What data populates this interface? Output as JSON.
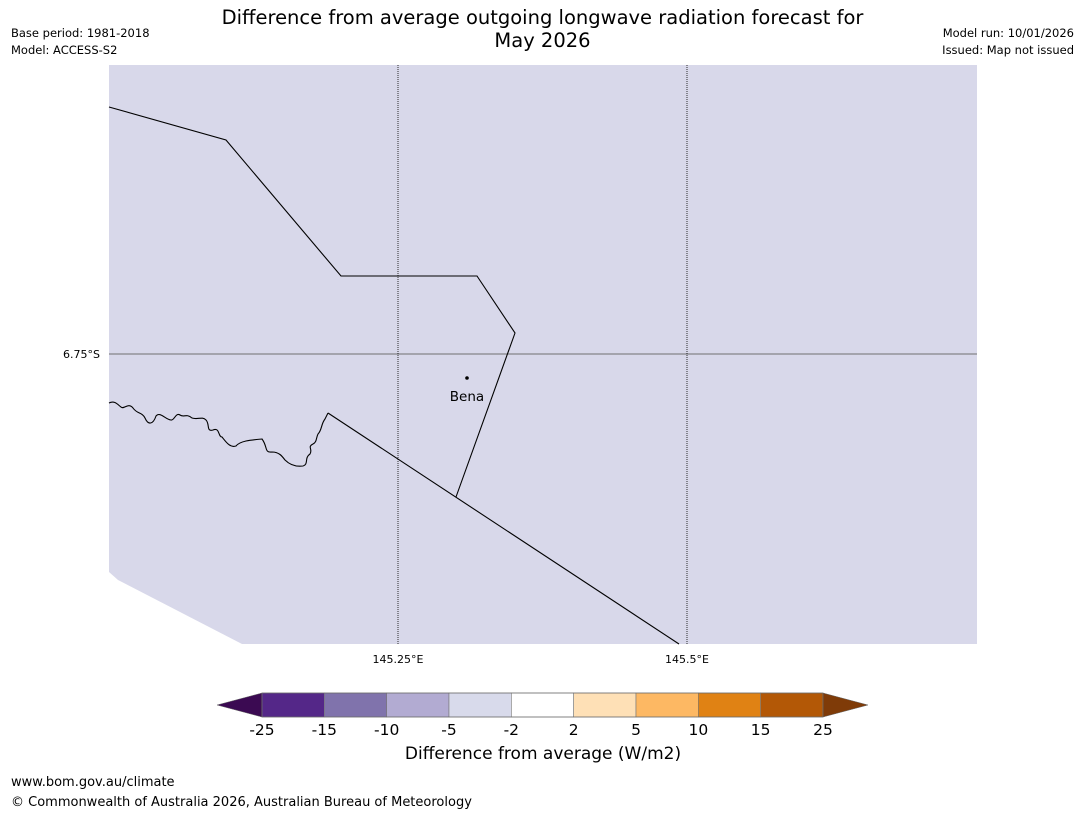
{
  "header": {
    "title_line1": "Difference from average outgoing longwave radiation forecast for",
    "title_line2": "May 2026",
    "base_period": "Base period: 1981-2018",
    "model": "Model: ACCESS-S2",
    "model_run": "Model run: 10/01/2026",
    "issued": "Issued: Map not issued"
  },
  "map": {
    "background_color": "#d8d8ea",
    "lat_labels": [
      "6.75°S"
    ],
    "lon_labels": [
      "145.25°E",
      "145.5°E"
    ],
    "places": [
      {
        "name": "Bena"
      }
    ]
  },
  "colorbar": {
    "label": "Difference from average (W/m2)",
    "ticks": [
      "-25",
      "-15",
      "-10",
      "-5",
      "-2",
      "2",
      "5",
      "10",
      "15",
      "25"
    ],
    "under_color": "#3b0a52",
    "over_color": "#7f3b08",
    "colors": [
      "#542788",
      "#8073ac",
      "#b2abd2",
      "#d8daeb",
      "#ffffff",
      "#fee0b6",
      "#fdb863",
      "#e08214",
      "#b35806"
    ]
  },
  "footer": {
    "url": "www.bom.gov.au/climate",
    "copyright": "© Commonwealth of Australia 2026, Australian Bureau of Meteorology"
  }
}
